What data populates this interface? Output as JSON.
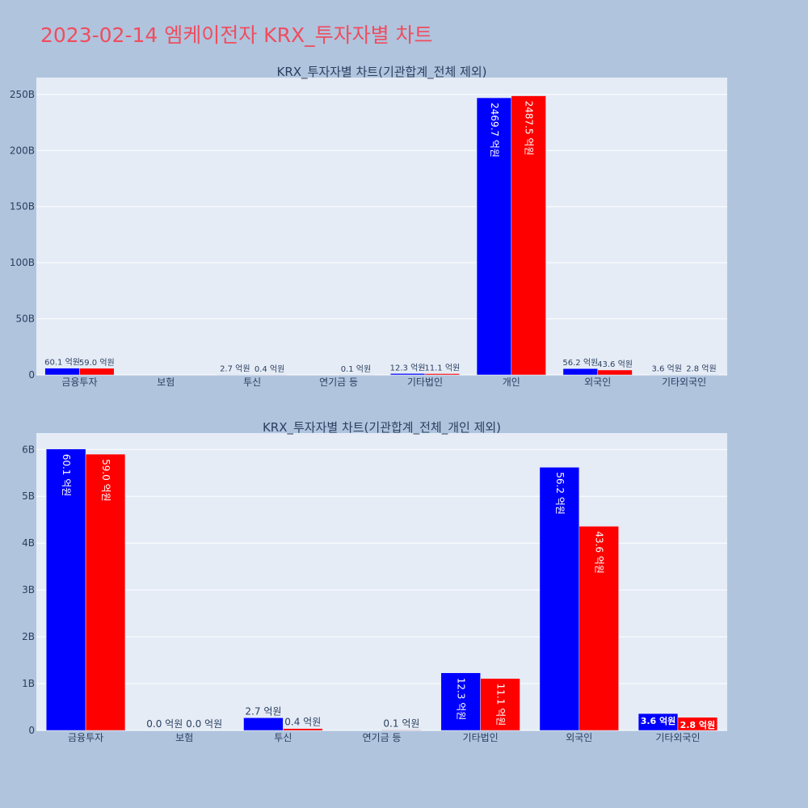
{
  "title": "2023-02-14 엠케이전자 KRX_투자자별 차트",
  "colors": {
    "buy": "#0000ff",
    "sell": "#ff0000",
    "plot_bg": "#e5ecf6",
    "page_bg": "#b0c4de",
    "title": "#ef4d5e"
  },
  "chart_data": [
    {
      "type": "bar",
      "title": "KRX_투자자별 차트(기관합계_전체 제외)",
      "categories": [
        "금융투자",
        "보험",
        "투신",
        "연기금 등",
        "기타법인",
        "개인",
        "외국인",
        "기타외국인"
      ],
      "ylim": [
        0,
        265000000000
      ],
      "yticks": [
        0,
        50000000000,
        100000000000,
        150000000000,
        200000000000,
        250000000000
      ],
      "ytick_labels": [
        "0",
        "50B",
        "100B",
        "150B",
        "200B",
        "250B"
      ],
      "series": [
        {
          "color": "#0000ff",
          "values": [
            6010000000,
            0,
            270000000,
            0,
            1230000000,
            246970000000,
            5620000000,
            360000000
          ],
          "labels": [
            "60.1 억원",
            "",
            "2.7 억원",
            "",
            "12.3 억원",
            "2469.7 억원",
            "56.2 억원",
            "3.6 억원"
          ]
        },
        {
          "color": "#ff0000",
          "values": [
            5900000000,
            0,
            40000000,
            10000000,
            1110000000,
            248750000000,
            4360000000,
            280000000
          ],
          "labels": [
            "59.0 억원",
            "",
            "0.4 억원",
            "0.1 억원",
            "11.1 억원",
            "2487.5 억원",
            "43.6 억원",
            "2.8 억원"
          ]
        }
      ]
    },
    {
      "type": "bar",
      "title": "KRX_투자자별 차트(기관합계_전체_개인 제외)",
      "categories": [
        "금융투자",
        "보험",
        "투신",
        "연기금 등",
        "기타법인",
        "외국인",
        "기타외국인"
      ],
      "ylim": [
        0,
        6350000000
      ],
      "yticks": [
        0,
        1000000000,
        2000000000,
        3000000000,
        4000000000,
        5000000000,
        6000000000
      ],
      "ytick_labels": [
        "0",
        "1B",
        "2B",
        "3B",
        "4B",
        "5B",
        "6B"
      ],
      "series": [
        {
          "color": "#0000ff",
          "values": [
            6010000000,
            0,
            270000000,
            0,
            1230000000,
            5620000000,
            360000000
          ],
          "labels": [
            "60.1 억원",
            "0.0 억원",
            "2.7 억원",
            "",
            "12.3 억원",
            "56.2 억원",
            "3.6 억원"
          ]
        },
        {
          "color": "#ff0000",
          "values": [
            5900000000,
            0,
            40000000,
            10000000,
            1110000000,
            4360000000,
            280000000
          ],
          "labels": [
            "59.0 억원",
            "0.0 억원",
            "0.4 억원",
            "0.1 억원",
            "11.1 억원",
            "43.6 억원",
            "2.8 억원"
          ]
        }
      ]
    }
  ]
}
